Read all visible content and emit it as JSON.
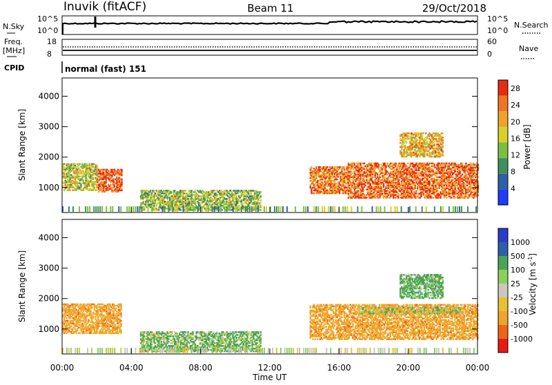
{
  "header": {
    "station": "Inuvik (fitACF)",
    "beam": "Beam 11",
    "date": "29/Oct/2018"
  },
  "side_labels": {
    "nsky": "N.Sky",
    "nsearch": "N.Search",
    "freq_line1": "Freq.",
    "freq_line2": "[MHz]",
    "nave": "Nave",
    "cpid": "CPID",
    "cpid_value": "normal (fast) 151"
  },
  "noise_panel": {
    "left_ticks": [
      "10^5",
      "10^0"
    ],
    "right_ticks": [
      "10^5",
      "10^0"
    ]
  },
  "freq_panel": {
    "left_ticks": [
      "18",
      "8"
    ],
    "right_ticks": [
      "60",
      "0"
    ]
  },
  "colors": {
    "power_scale": [
      "#1f3cff",
      "#2e5fa8",
      "#3f8f5e",
      "#7ac043",
      "#d8d028",
      "#f0a22a",
      "#f07424",
      "#e82c10"
    ],
    "velocity_scale": [
      "#e81a12",
      "#f06418",
      "#f0a42a",
      "#e8c030",
      "#c8c8c0",
      "#8cd05c",
      "#4aa458",
      "#2e5fa8",
      "#2a3cc8"
    ]
  },
  "chart_data": [
    {
      "type": "heatmap",
      "name": "power",
      "xlabel": "Time UT",
      "ylabel": "Slant Range [km]",
      "x_ticks": [
        "00:00",
        "04:00",
        "08:00",
        "12:00",
        "16:00",
        "20:00",
        "00:00"
      ],
      "y_ticks": [
        1000,
        2000,
        3000,
        4000
      ],
      "ylim": [
        180,
        4600
      ],
      "colorbar_label": "Power [dB]",
      "colorbar_ticks": [
        4,
        8,
        12,
        16,
        20,
        24,
        28
      ],
      "colorbar_range": [
        0,
        30
      ],
      "echo_regions": [
        {
          "t": [
            0.0,
            2.0
          ],
          "range": [
            900,
            1800
          ],
          "mean_db": 16
        },
        {
          "t": [
            2.0,
            3.4
          ],
          "range": [
            850,
            1600
          ],
          "mean_db": 26
        },
        {
          "t": [
            4.5,
            11.5
          ],
          "range": [
            250,
            900
          ],
          "mean_db": 14
        },
        {
          "t": [
            14.3,
            16.5
          ],
          "range": [
            800,
            1700
          ],
          "mean_db": 24
        },
        {
          "t": [
            16.5,
            24.0
          ],
          "range": [
            650,
            1800
          ],
          "mean_db": 25
        },
        {
          "t": [
            19.5,
            22.0
          ],
          "range": [
            2000,
            2800
          ],
          "mean_db": 20
        }
      ]
    },
    {
      "type": "heatmap",
      "name": "velocity",
      "xlabel": "Time UT",
      "ylabel": "Slant Range [km]",
      "x_ticks": [
        "00:00",
        "04:00",
        "08:00",
        "12:00",
        "16:00",
        "20:00",
        "00:00"
      ],
      "y_ticks": [
        1000,
        2000,
        3000,
        4000
      ],
      "ylim": [
        180,
        4600
      ],
      "colorbar_label": "Velocity [m s^-1]",
      "colorbar_ticks": [
        1000,
        500,
        100,
        25,
        -25,
        -100,
        -500,
        -1000
      ],
      "echo_regions": [
        {
          "t": [
            0.0,
            3.4
          ],
          "range": [
            850,
            1800
          ],
          "mean_velocity": -300
        },
        {
          "t": [
            4.5,
            11.5
          ],
          "range": [
            250,
            900
          ],
          "mean_velocity": 150
        },
        {
          "t": [
            14.3,
            24.0
          ],
          "range": [
            650,
            1800
          ],
          "mean_velocity": -300
        },
        {
          "t": [
            17.0,
            23.0
          ],
          "range": [
            1500,
            1700
          ],
          "mean_velocity": 0
        },
        {
          "t": [
            19.5,
            22.0
          ],
          "range": [
            2000,
            2800
          ],
          "mean_velocity": 200
        }
      ]
    }
  ]
}
